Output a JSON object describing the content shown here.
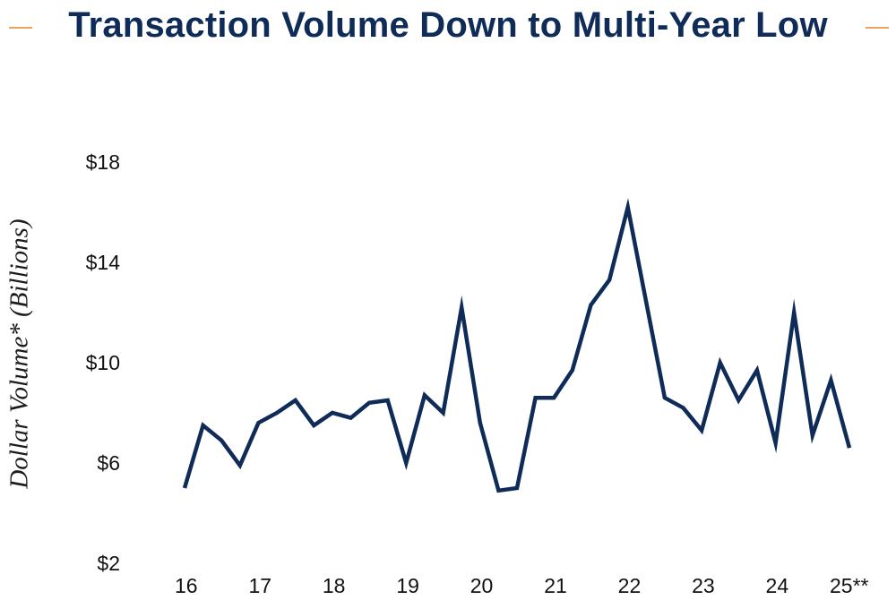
{
  "title": "Transaction Volume Down to Multi-Year Low",
  "colors": {
    "accent": "#f0a25e",
    "title": "#0f2b57",
    "line": "#0f2b57"
  },
  "chart_data": {
    "type": "line",
    "title": "Transaction Volume Down to Multi-Year Low",
    "ylabel": "Dollar Volume* (Billions)",
    "xlabel": "",
    "ylim": [
      2,
      18
    ],
    "yticks": [
      18,
      14,
      10,
      6,
      2
    ],
    "ytick_labels": [
      "$18",
      "$14",
      "$10",
      "$6",
      "$2"
    ],
    "xticks": [
      16,
      17,
      18,
      19,
      20,
      21,
      22,
      23,
      24,
      25
    ],
    "xtick_labels": [
      "16",
      "17",
      "18",
      "19",
      "20",
      "21",
      "22",
      "23",
      "24",
      "25**"
    ],
    "grid": false,
    "series": [
      {
        "x": [
          16.0,
          16.25,
          16.5,
          16.75,
          17.0,
          17.25,
          17.5,
          17.75,
          18.0,
          18.25,
          18.5,
          18.75,
          19.0,
          19.25,
          19.5,
          19.75,
          20.0,
          20.25,
          20.5,
          20.75,
          21.0,
          21.25,
          21.5,
          21.75,
          22.0,
          22.25,
          22.5,
          22.75,
          23.0,
          23.25,
          23.5,
          23.75,
          24.0,
          24.25,
          24.5,
          24.75,
          25.0
        ],
        "y": [
          5.0,
          7.5,
          6.9,
          5.9,
          7.6,
          8.0,
          8.5,
          7.5,
          8.0,
          7.8,
          8.4,
          8.5,
          6.0,
          8.7,
          8.0,
          12.2,
          7.6,
          4.9,
          5.0,
          8.6,
          8.6,
          9.7,
          12.3,
          13.3,
          16.2,
          12.4,
          8.6,
          8.2,
          7.3,
          10.0,
          8.5,
          9.7,
          6.8,
          12.0,
          7.1,
          9.3,
          6.6
        ]
      }
    ]
  }
}
